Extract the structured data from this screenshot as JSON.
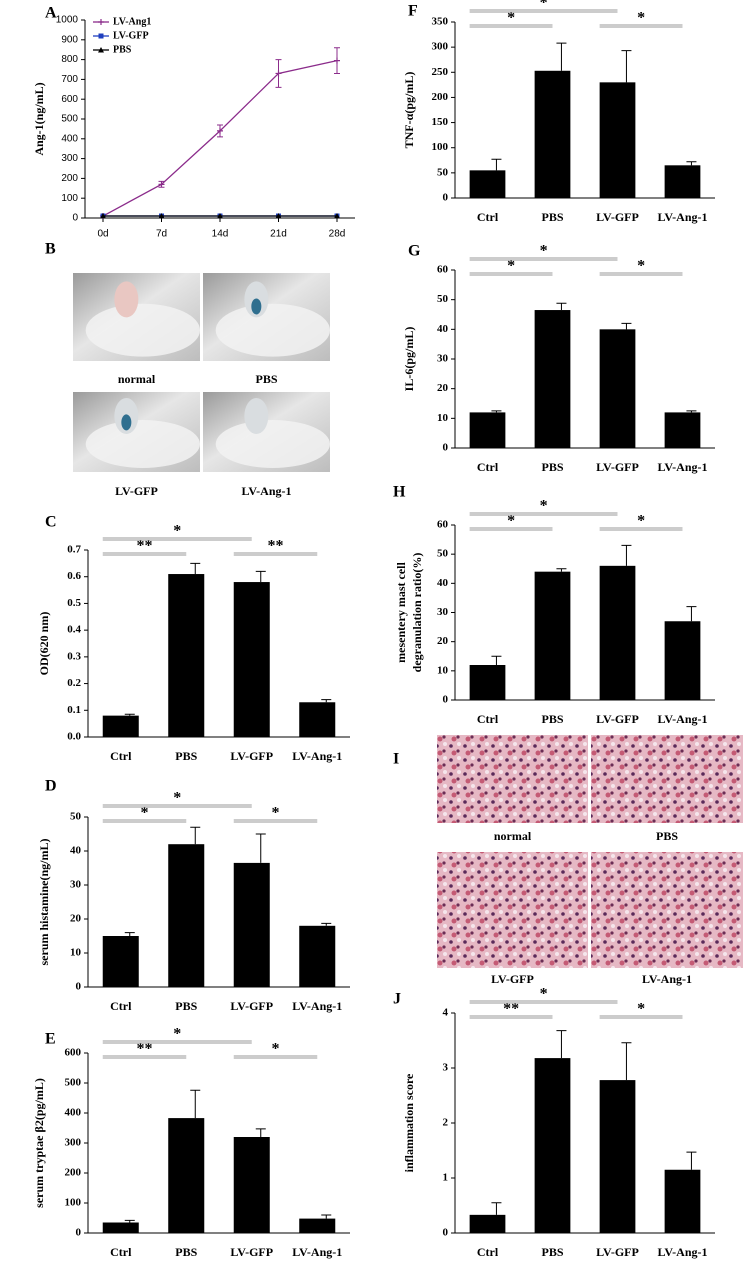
{
  "chart_data": [
    {
      "type": "line",
      "panel": "A",
      "ylabel": "Ang-1(ng/mL)",
      "categories": [
        "0d",
        "7d",
        "14d",
        "21d",
        "28d"
      ],
      "ylim": [
        0,
        1000
      ],
      "yticks": [
        0,
        100,
        200,
        300,
        400,
        500,
        600,
        700,
        800,
        900,
        1000
      ],
      "legend": "upper left",
      "series": [
        {
          "name": "LV-Ang1",
          "color": "#8b2c8b",
          "marker": "plus",
          "values": [
            10,
            170,
            440,
            730,
            795
          ],
          "errors": [
            0,
            15,
            30,
            70,
            65
          ]
        },
        {
          "name": "LV-GFP",
          "color": "#1f3fbf",
          "marker": "square",
          "values": [
            10,
            10,
            10,
            10,
            10
          ]
        },
        {
          "name": "PBS",
          "color": "#000000",
          "marker": "triangle",
          "values": [
            10,
            10,
            10,
            10,
            10
          ]
        }
      ]
    },
    {
      "type": "bar",
      "panel": "C",
      "ylabel": "OD(620 nm)",
      "color": "#000000",
      "categories": [
        "Ctrl",
        "PBS",
        "LV-GFP",
        "LV-Ang-1"
      ],
      "values": [
        0.08,
        0.61,
        0.58,
        0.13
      ],
      "errors": [
        0.005,
        0.04,
        0.04,
        0.01
      ],
      "ylim": [
        0,
        0.7
      ],
      "yticks": [
        {
          "value": 0,
          "label": "0.0"
        },
        0.1,
        0.2,
        0.3,
        0.4,
        0.5,
        0.6,
        0.7
      ],
      "annotations": [
        {
          "text": "**",
          "from": 0,
          "to": 1
        },
        {
          "text": "*",
          "from": 0,
          "to": 2
        },
        {
          "text": "**",
          "from": 2,
          "to": 3
        }
      ]
    },
    {
      "type": "bar",
      "panel": "D",
      "ylabel": "serum histamine(ng/mL)",
      "color": "#000000",
      "categories": [
        "Ctrl",
        "PBS",
        "LV-GFP",
        "LV-Ang-1"
      ],
      "values": [
        15,
        42,
        36.5,
        18
      ],
      "errors": [
        1,
        5,
        8.5,
        0.7
      ],
      "ylim": [
        0,
        50
      ],
      "yticks": [
        0,
        10,
        20,
        30,
        40,
        50
      ],
      "annotations": [
        {
          "text": "*",
          "from": 0,
          "to": 1
        },
        {
          "text": "*",
          "from": 0,
          "to": 2
        },
        {
          "text": "*",
          "from": 2,
          "to": 3
        }
      ]
    },
    {
      "type": "bar",
      "panel": "E",
      "ylabel": "serum tryptae β2(pg/mL)",
      "color": "#000000",
      "categories": [
        "Ctrl",
        "PBS",
        "LV-GFP",
        "LV-Ang-1"
      ],
      "values": [
        35,
        383,
        320,
        48
      ],
      "errors": [
        7,
        93,
        27,
        12
      ],
      "ylim": [
        0,
        600
      ],
      "yticks": [
        0,
        100,
        200,
        300,
        400,
        500,
        600
      ],
      "annotations": [
        {
          "text": "**",
          "from": 0,
          "to": 1
        },
        {
          "text": "*",
          "from": 0,
          "to": 2
        },
        {
          "text": "*",
          "from": 2,
          "to": 3
        }
      ]
    },
    {
      "type": "bar",
      "panel": "F",
      "ylabel": "TNF-α(pg/mL)",
      "color": "#000000",
      "categories": [
        "Ctrl",
        "PBS",
        "LV-GFP",
        "LV-Ang-1"
      ],
      "values": [
        55,
        253,
        230,
        65
      ],
      "errors": [
        22,
        55,
        63,
        7
      ],
      "ylim": [
        0,
        350
      ],
      "yticks": [
        0,
        50,
        100,
        150,
        200,
        250,
        300,
        350
      ],
      "annotations": [
        {
          "text": "*",
          "from": 0,
          "to": 1
        },
        {
          "text": "*",
          "from": 0,
          "to": 2
        },
        {
          "text": "*",
          "from": 2,
          "to": 3
        }
      ]
    },
    {
      "type": "bar",
      "panel": "G",
      "ylabel": "IL-6(pg/mL)",
      "color": "#000000",
      "categories": [
        "Ctrl",
        "PBS",
        "LV-GFP",
        "LV-Ang-1"
      ],
      "values": [
        12,
        46.5,
        40,
        12
      ],
      "errors": [
        0.5,
        2.3,
        2,
        0.5
      ],
      "ylim": [
        0,
        60
      ],
      "yticks": [
        0,
        10,
        20,
        30,
        40,
        50,
        60
      ],
      "annotations": [
        {
          "text": "*",
          "from": 0,
          "to": 1
        },
        {
          "text": "*",
          "from": 0,
          "to": 2
        },
        {
          "text": "*",
          "from": 2,
          "to": 3
        }
      ]
    },
    {
      "type": "bar",
      "panel": "H",
      "ylabel": [
        "mesentery mast cell",
        "degranulation ratio(%)"
      ],
      "color": "#000000",
      "categories": [
        "Ctrl",
        "PBS",
        "LV-GFP",
        "LV-Ang-1"
      ],
      "values": [
        12,
        44,
        46,
        27
      ],
      "errors": [
        3,
        1,
        7,
        5
      ],
      "ylim": [
        0,
        60
      ],
      "yticks": [
        0,
        10,
        20,
        30,
        40,
        50,
        60
      ],
      "annotations": [
        {
          "text": "*",
          "from": 0,
          "to": 1
        },
        {
          "text": "*",
          "from": 0,
          "to": 2
        },
        {
          "text": "*",
          "from": 2,
          "to": 3
        }
      ]
    },
    {
      "type": "bar",
      "panel": "J",
      "ylabel": "inflammation score",
      "color": "#000000",
      "categories": [
        "Ctrl",
        "PBS",
        "LV-GFP",
        "LV-Ang-1"
      ],
      "values": [
        0.33,
        3.18,
        2.78,
        1.15
      ],
      "errors": [
        0.22,
        0.5,
        0.68,
        0.32
      ],
      "ylim": [
        0,
        4
      ],
      "yticks": [
        0,
        1,
        2,
        3,
        4
      ],
      "annotations": [
        {
          "text": "**",
          "from": 0,
          "to": 1
        },
        {
          "text": "*",
          "from": 0,
          "to": 2
        },
        {
          "text": "*",
          "from": 2,
          "to": 3
        }
      ]
    }
  ],
  "photo_panels": [
    {
      "panel": "B",
      "labels": [
        "normal",
        "PBS",
        "LV-GFP",
        "LV-Ang-1"
      ]
    },
    {
      "panel": "I",
      "labels": [
        "normal",
        "PBS",
        "LV-GFP",
        "LV-Ang-1"
      ]
    }
  ]
}
